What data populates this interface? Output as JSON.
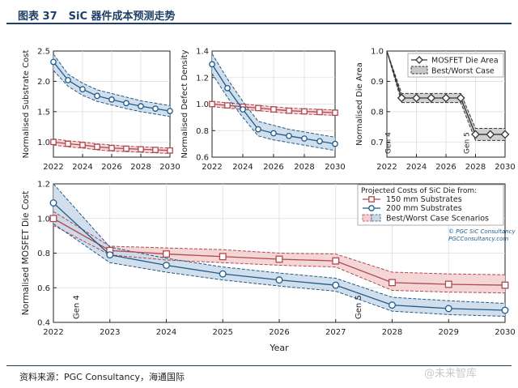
{
  "header": {
    "figure_number": "图表 37",
    "title": "SiC 器件成本预测走势"
  },
  "footer": {
    "source": "资料来源：PGC Consultancy，海通国际",
    "watermark": "@未来智库"
  },
  "colors": {
    "red": "#b0494e",
    "blue": "#1f5b8a",
    "red_band": "#f3cfcf",
    "blue_band": "#c9d9ea",
    "grey_band": "#c8c8c8",
    "dark": "#333333"
  },
  "chart_data": [
    {
      "id": "substrate",
      "type": "line",
      "xlabel": "",
      "ylabel": "Normalised Substrate Cost",
      "xlim": [
        2022,
        2030
      ],
      "ylim": [
        0.75,
        2.5
      ],
      "xticks": [
        2022,
        2024,
        2026,
        2028,
        2030
      ],
      "yticks": [
        1.0,
        1.5,
        2.0,
        2.5
      ],
      "series": [
        {
          "name": "150 mm",
          "color": "red",
          "marker": "square",
          "x": [
            2022,
            2023,
            2024,
            2025,
            2026,
            2027,
            2028,
            2029,
            2030
          ],
          "y": [
            1.0,
            0.97,
            0.95,
            0.92,
            0.9,
            0.89,
            0.88,
            0.87,
            0.86
          ],
          "upper": [
            1.05,
            1.02,
            1.0,
            0.97,
            0.95,
            0.93,
            0.92,
            0.91,
            0.9
          ],
          "lower": [
            0.95,
            0.92,
            0.9,
            0.87,
            0.85,
            0.84,
            0.83,
            0.82,
            0.81
          ]
        },
        {
          "name": "200 mm",
          "color": "blue",
          "marker": "circle",
          "x": [
            2022,
            2023,
            2024,
            2025,
            2026,
            2027,
            2028,
            2029,
            2030
          ],
          "y": [
            2.32,
            2.02,
            1.87,
            1.76,
            1.7,
            1.64,
            1.59,
            1.55,
            1.51
          ],
          "upper": [
            2.45,
            2.12,
            1.97,
            1.86,
            1.8,
            1.74,
            1.68,
            1.64,
            1.6
          ],
          "lower": [
            2.18,
            1.92,
            1.77,
            1.67,
            1.61,
            1.55,
            1.5,
            1.46,
            1.42
          ]
        }
      ]
    },
    {
      "id": "defect",
      "type": "line",
      "xlabel": "",
      "ylabel": "Normalised Defect Density",
      "xlim": [
        2022,
        2030
      ],
      "ylim": [
        0.6,
        1.4
      ],
      "xticks": [
        2022,
        2024,
        2026,
        2028,
        2030
      ],
      "yticks": [
        0.6,
        0.8,
        1.0,
        1.2,
        1.4
      ],
      "series": [
        {
          "name": "150 mm",
          "color": "red",
          "marker": "square",
          "x": [
            2022,
            2023,
            2024,
            2025,
            2026,
            2027,
            2028,
            2029,
            2030
          ],
          "y": [
            1.0,
            0.99,
            0.98,
            0.97,
            0.96,
            0.95,
            0.945,
            0.94,
            0.935
          ],
          "upper": [
            1.02,
            1.01,
            1.0,
            0.99,
            0.98,
            0.97,
            0.965,
            0.96,
            0.955
          ],
          "lower": [
            0.98,
            0.97,
            0.96,
            0.95,
            0.94,
            0.93,
            0.925,
            0.92,
            0.915
          ]
        },
        {
          "name": "200 mm",
          "color": "blue",
          "marker": "circle",
          "x": [
            2022,
            2023,
            2024,
            2025,
            2026,
            2027,
            2028,
            2029,
            2030
          ],
          "y": [
            1.3,
            1.12,
            0.96,
            0.81,
            0.78,
            0.76,
            0.74,
            0.72,
            0.7
          ],
          "upper": [
            1.38,
            1.19,
            1.02,
            0.87,
            0.84,
            0.81,
            0.79,
            0.77,
            0.75
          ],
          "lower": [
            1.23,
            1.05,
            0.9,
            0.76,
            0.73,
            0.71,
            0.69,
            0.67,
            0.65
          ]
        }
      ]
    },
    {
      "id": "die-area",
      "type": "line",
      "xlabel": "",
      "ylabel": "Normalised Die Area",
      "xlim": [
        2022,
        2030
      ],
      "ylim": [
        0.65,
        1.0
      ],
      "xticks": [
        2022,
        2024,
        2026,
        2028,
        2030
      ],
      "yticks": [
        0.7,
        0.8,
        0.9,
        1.0
      ],
      "annotations": [
        {
          "text": "Gen 4",
          "x": 2022.25
        },
        {
          "text": "Gen 5",
          "x": 2027.55
        }
      ],
      "legend": [
        "MOSFET Die Area",
        "Best/Worst Case"
      ],
      "series": [
        {
          "name": "MOSFET Die Area",
          "color": "dark",
          "marker": "diamond",
          "x": [
            2022,
            2023,
            2024,
            2025,
            2026,
            2027,
            2028,
            2029,
            2030
          ],
          "y": [
            1.0,
            0.845,
            0.845,
            0.845,
            0.845,
            0.845,
            0.725,
            0.725,
            0.725
          ],
          "upper": [
            1.0,
            0.86,
            0.86,
            0.86,
            0.86,
            0.86,
            0.745,
            0.745,
            0.745
          ],
          "lower": [
            1.0,
            0.83,
            0.83,
            0.83,
            0.83,
            0.83,
            0.705,
            0.705,
            0.705
          ]
        }
      ]
    },
    {
      "id": "die-cost",
      "type": "line",
      "xlabel": "Year",
      "ylabel": "Normalised MOSFET Die Cost",
      "xlim": [
        2022,
        2030
      ],
      "ylim": [
        0.4,
        1.2
      ],
      "xticks": [
        2022,
        2023,
        2024,
        2025,
        2026,
        2027,
        2028,
        2029,
        2030
      ],
      "yticks": [
        0.4,
        0.6,
        0.8,
        1.0,
        1.2
      ],
      "annotations": [
        {
          "text": "Gen 4",
          "x": 2022.45
        },
        {
          "text": "Gen 5",
          "x": 2027.45
        }
      ],
      "legend_title": "Projected Costs of SiC Die from:",
      "legend": [
        "150 mm Substrates",
        "200 mm Substrates",
        "Best/Worst Case Scenarios"
      ],
      "credit": [
        "© PGC SiC Consultancy",
        "PGCConsultancy.com"
      ],
      "series": [
        {
          "name": "150 mm Substrates",
          "color": "red",
          "marker": "square",
          "x": [
            2022,
            2023,
            2024,
            2025,
            2026,
            2027,
            2028,
            2029,
            2030
          ],
          "y": [
            1.0,
            0.815,
            0.795,
            0.78,
            0.765,
            0.755,
            0.63,
            0.62,
            0.615
          ],
          "upper": [
            1.04,
            0.84,
            0.83,
            0.82,
            0.8,
            0.795,
            0.69,
            0.68,
            0.675
          ],
          "lower": [
            0.96,
            0.79,
            0.76,
            0.745,
            0.73,
            0.72,
            0.585,
            0.575,
            0.57
          ]
        },
        {
          "name": "200 mm Substrates",
          "color": "blue",
          "marker": "circle",
          "x": [
            2022,
            2023,
            2024,
            2025,
            2026,
            2027,
            2028,
            2029,
            2030
          ],
          "y": [
            1.09,
            0.79,
            0.73,
            0.68,
            0.645,
            0.615,
            0.5,
            0.48,
            0.47
          ],
          "upper": [
            1.2,
            0.835,
            0.77,
            0.72,
            0.685,
            0.655,
            0.545,
            0.525,
            0.51
          ],
          "lower": [
            0.97,
            0.745,
            0.69,
            0.645,
            0.61,
            0.58,
            0.465,
            0.445,
            0.435
          ]
        }
      ]
    }
  ]
}
